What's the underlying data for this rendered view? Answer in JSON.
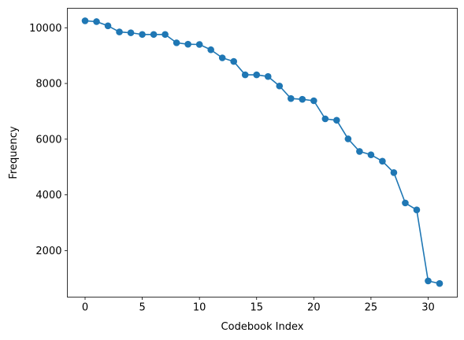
{
  "chart_data": {
    "type": "line",
    "title": "",
    "xlabel": "Codebook Index",
    "ylabel": "Frequency",
    "xlim": [
      -1.55,
      32.55
    ],
    "ylim": [
      330,
      10700
    ],
    "grid": false,
    "legend": "none",
    "color": "#1f77b4",
    "marker": "circle",
    "x_ticks": [
      {
        "value": 0,
        "label": "0"
      },
      {
        "value": 5,
        "label": "5"
      },
      {
        "value": 10,
        "label": "10"
      },
      {
        "value": 15,
        "label": "15"
      },
      {
        "value": 20,
        "label": "20"
      },
      {
        "value": 25,
        "label": "25"
      },
      {
        "value": 30,
        "label": "30"
      }
    ],
    "y_ticks": [
      {
        "value": 2000,
        "label": "2000"
      },
      {
        "value": 4000,
        "label": "4000"
      },
      {
        "value": 6000,
        "label": "6000"
      },
      {
        "value": 8000,
        "label": "8000"
      },
      {
        "value": 10000,
        "label": "10000"
      }
    ],
    "x": [
      0,
      1,
      2,
      3,
      4,
      5,
      6,
      7,
      8,
      9,
      10,
      11,
      12,
      13,
      14,
      15,
      16,
      17,
      18,
      19,
      20,
      21,
      22,
      23,
      24,
      25,
      26,
      27,
      28,
      29,
      30,
      31
    ],
    "values": [
      10250,
      10220,
      10070,
      9850,
      9820,
      9760,
      9760,
      9760,
      9460,
      9410,
      9400,
      9210,
      8920,
      8790,
      8310,
      8310,
      8250,
      7910,
      7460,
      7430,
      7380,
      6730,
      6680,
      6010,
      5560,
      5440,
      5210,
      4800,
      3710,
      3460,
      910,
      820
    ]
  }
}
